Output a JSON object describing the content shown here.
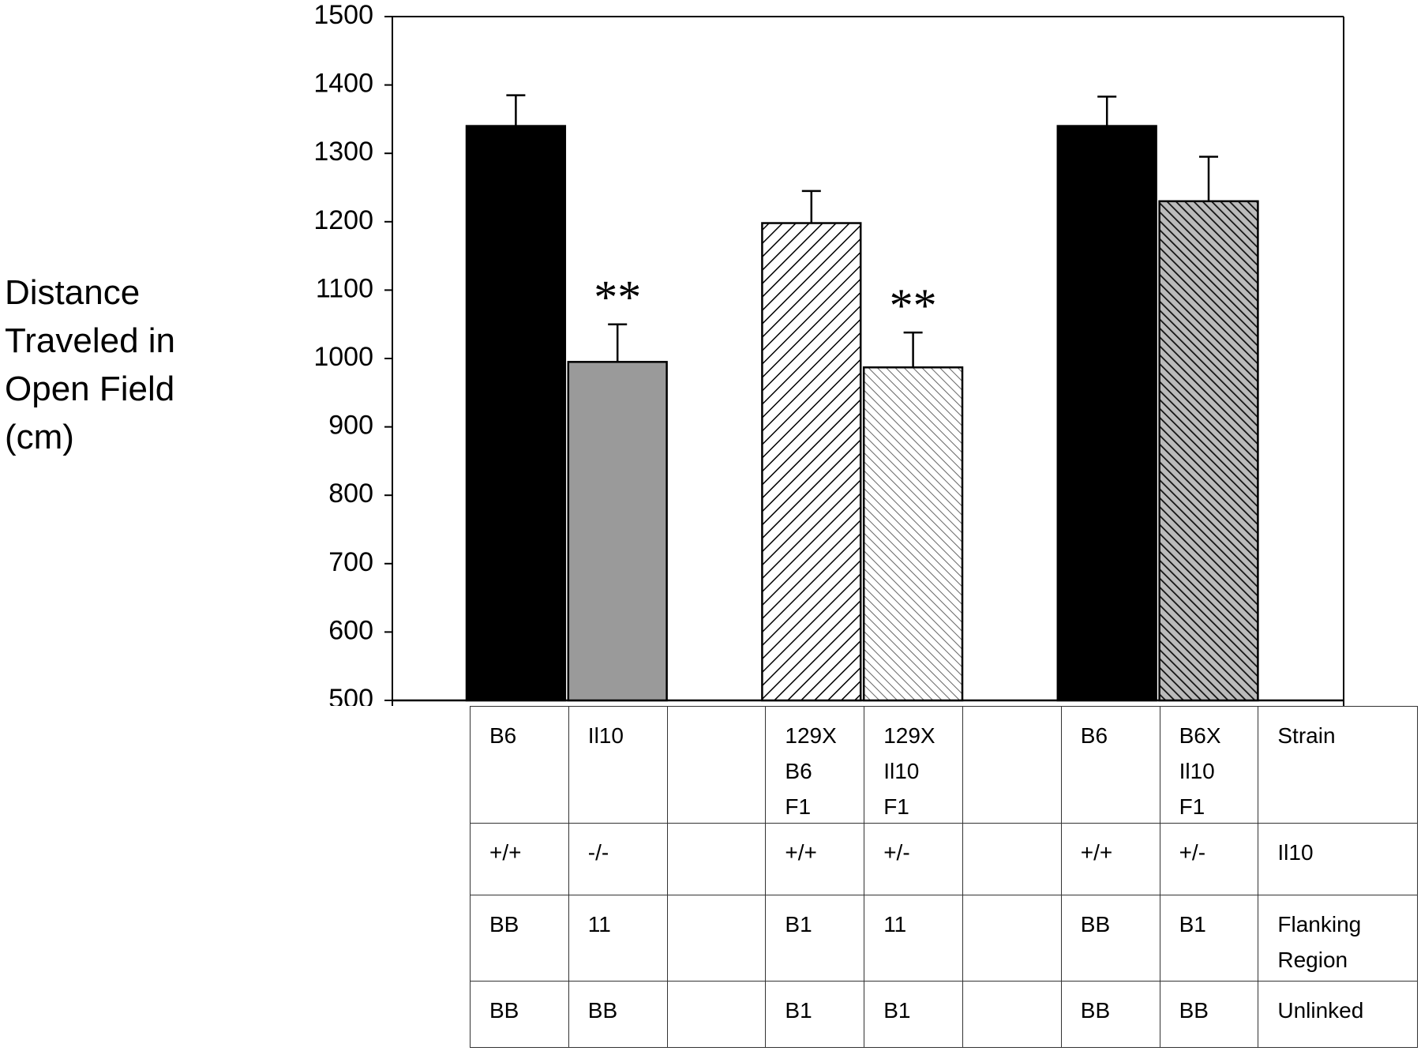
{
  "chart_data": {
    "type": "bar",
    "y_label": [
      "Distance",
      "Traveled in",
      "Open Field",
      "(cm)"
    ],
    "ylim": [
      500,
      1500
    ],
    "yticks": [
      500,
      600,
      700,
      800,
      900,
      1000,
      1100,
      1200,
      1300,
      1400,
      1500
    ],
    "values": [
      1340,
      995,
      null,
      1198,
      987,
      null,
      1340,
      1230
    ],
    "errors": [
      45,
      55,
      null,
      47,
      51,
      null,
      43,
      65
    ],
    "patterns": [
      "black",
      "gray",
      null,
      "hatch-right",
      "hatch-left-light",
      null,
      "black",
      "hatch-left-dark"
    ],
    "annotations": [
      {
        "text": "**",
        "index": 1
      },
      {
        "text": "**",
        "index": 4
      }
    ]
  },
  "table": {
    "rows": [
      [
        "B6",
        "Il10",
        null,
        "129X\nB6\nF1",
        "129X\nIl10\nF1",
        null,
        "B6",
        "B6X\nIl10\nF1",
        "Strain"
      ],
      [
        "+/+",
        "-/-",
        null,
        "+/+",
        "+/-",
        null,
        "+/+",
        "+/-",
        "Il10"
      ],
      [
        "BB",
        "11",
        null,
        "B1",
        "11",
        null,
        "BB",
        "B1",
        "Flanking\nRegion"
      ],
      [
        "BB",
        "BB",
        null,
        "B1",
        "B1",
        null,
        "BB",
        "BB",
        "Unlinked"
      ]
    ]
  }
}
